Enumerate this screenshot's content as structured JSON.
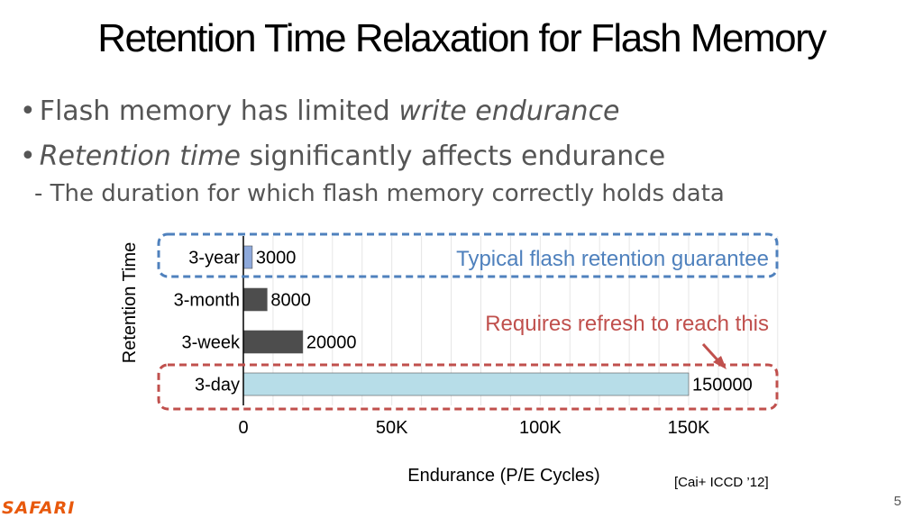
{
  "slide": {
    "title": "Retention Time Relaxation for Flash Memory",
    "bullet1_prefix": "Flash memory has limited ",
    "bullet1_em": "write endurance",
    "bullet2_em": "Retention time",
    "bullet2_suffix": " significantly affects endurance",
    "sub_bullet": "The duration for which flash memory correctly holds data",
    "reference": "[Cai+ ICCD ’12]",
    "page_number": "5",
    "logo_text": "SAFARI"
  },
  "chart_data": {
    "type": "bar",
    "orientation": "horizontal",
    "categories": [
      "3-year",
      "3-month",
      "3-week",
      "3-day"
    ],
    "values": [
      3000,
      8000,
      20000,
      150000
    ],
    "value_labels": [
      "3000",
      "8000",
      "20000",
      "150000"
    ],
    "bar_colors": [
      "#8ea9db",
      "#4d4d4d",
      "#4d4d4d",
      "#b7dde8"
    ],
    "xlabel": "Endurance (P/E Cycles)",
    "ylabel": "Retention Time",
    "xlim": [
      0,
      180000
    ],
    "xticks": [
      0,
      50000,
      100000,
      150000
    ],
    "xtick_labels": [
      "0",
      "50K",
      "100K",
      "150K"
    ],
    "grid": true,
    "annotations": [
      {
        "text": "Typical flash retention guarantee",
        "color": "#4f81bd",
        "target": "3-year"
      },
      {
        "text": "Requires refresh to reach this",
        "color": "#c0504d",
        "target": "3-day"
      }
    ]
  }
}
